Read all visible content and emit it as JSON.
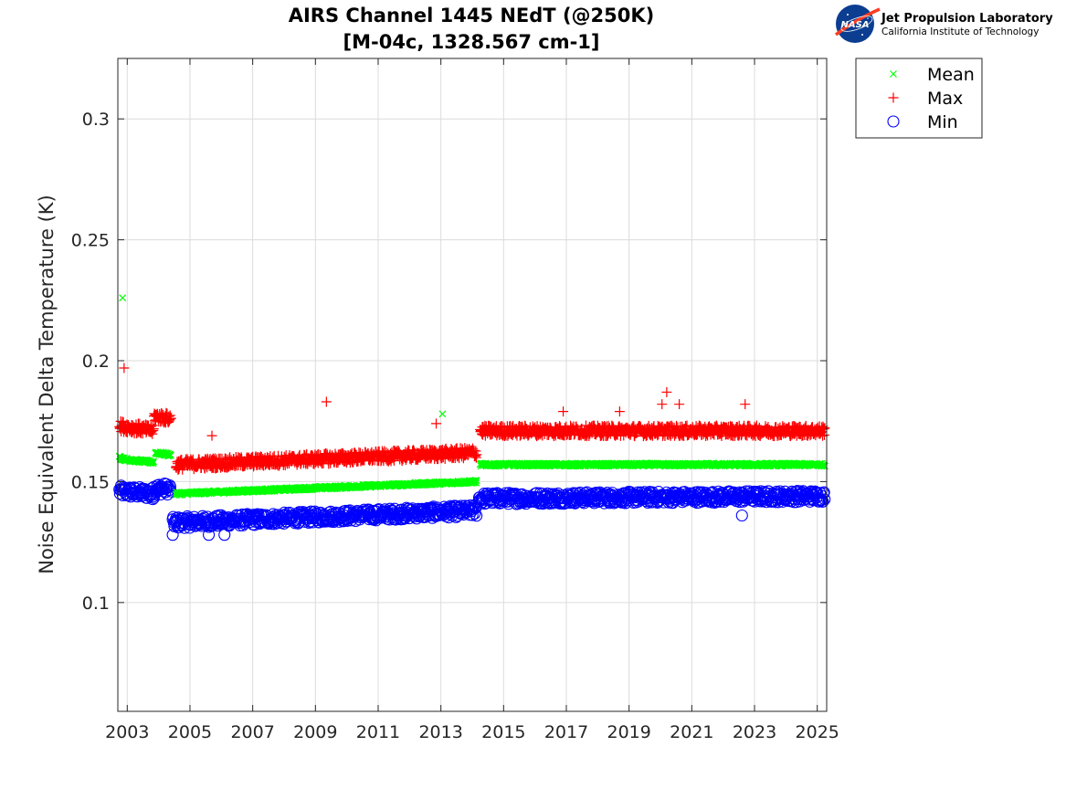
{
  "logo": {
    "badge_text": "NASA",
    "org_name": "Jet Propulsion Laboratory",
    "org_subtitle": "California Institute of Technology"
  },
  "chart_data": {
    "type": "scatter",
    "title": "AIRS Channel 1445 NEdT (@250K)",
    "subtitle": "[M-04c, 1328.567 cm-1]",
    "xlabel": "",
    "ylabel": "Noise Equivalent Delta Temperature (K)",
    "xlim": [
      2002.7,
      2025.3
    ],
    "ylim": [
      0.055,
      0.325
    ],
    "xticks": [
      2003,
      2005,
      2007,
      2009,
      2011,
      2013,
      2015,
      2017,
      2019,
      2021,
      2023,
      2025
    ],
    "yticks": [
      0.1,
      0.15,
      0.2,
      0.25,
      0.3
    ],
    "grid": true,
    "legend_position": "outside top-right",
    "series": [
      {
        "name": "Mean",
        "marker": "x",
        "color": "#00ff00",
        "segments": [
          {
            "x_start": 2002.75,
            "x_end": 2003.0,
            "y_start": 0.16,
            "y_end": 0.159
          },
          {
            "x_start": 2003.0,
            "x_end": 2003.85,
            "y_start": 0.159,
            "y_end": 0.158
          },
          {
            "x_start": 2003.9,
            "x_end": 2004.4,
            "y_start": 0.162,
            "y_end": 0.161
          },
          {
            "x_start": 2004.55,
            "x_end": 2014.15,
            "y_start": 0.145,
            "y_end": 0.15
          },
          {
            "x_start": 2014.25,
            "x_end": 2025.25,
            "y_start": 0.157,
            "y_end": 0.157
          }
        ],
        "outliers": [
          {
            "x": 2002.85,
            "y": 0.226
          },
          {
            "x": 2013.05,
            "y": 0.178
          }
        ]
      },
      {
        "name": "Max",
        "marker": "+",
        "color": "#ff0000",
        "segments": [
          {
            "x_start": 2002.75,
            "x_end": 2003.85,
            "y_start": 0.173,
            "y_end": 0.171
          },
          {
            "x_start": 2003.85,
            "x_end": 2004.4,
            "y_start": 0.177,
            "y_end": 0.176
          },
          {
            "x_start": 2004.55,
            "x_end": 2014.15,
            "y_start": 0.157,
            "y_end": 0.162
          },
          {
            "x_start": 2014.25,
            "x_end": 2025.25,
            "y_start": 0.171,
            "y_end": 0.171
          }
        ],
        "outliers": [
          {
            "x": 2002.9,
            "y": 0.197
          },
          {
            "x": 2009.35,
            "y": 0.183
          },
          {
            "x": 2020.2,
            "y": 0.187
          },
          {
            "x": 2020.05,
            "y": 0.182
          },
          {
            "x": 2020.6,
            "y": 0.182
          },
          {
            "x": 2022.7,
            "y": 0.182
          },
          {
            "x": 2012.85,
            "y": 0.174
          },
          {
            "x": 2005.7,
            "y": 0.169
          },
          {
            "x": 2016.9,
            "y": 0.179
          },
          {
            "x": 2018.7,
            "y": 0.179
          }
        ]
      },
      {
        "name": "Min",
        "marker": "o",
        "color": "#0000ff",
        "segments": [
          {
            "x_start": 2002.75,
            "x_end": 2003.85,
            "y_start": 0.146,
            "y_end": 0.145
          },
          {
            "x_start": 2003.85,
            "x_end": 2004.4,
            "y_start": 0.147,
            "y_end": 0.147
          },
          {
            "x_start": 2004.45,
            "x_end": 2014.15,
            "y_start": 0.133,
            "y_end": 0.138
          },
          {
            "x_start": 2014.2,
            "x_end": 2025.25,
            "y_start": 0.143,
            "y_end": 0.144
          }
        ],
        "outliers": [
          {
            "x": 2004.45,
            "y": 0.128
          },
          {
            "x": 2005.6,
            "y": 0.128
          },
          {
            "x": 2006.1,
            "y": 0.128
          },
          {
            "x": 2022.6,
            "y": 0.136
          }
        ]
      }
    ]
  }
}
